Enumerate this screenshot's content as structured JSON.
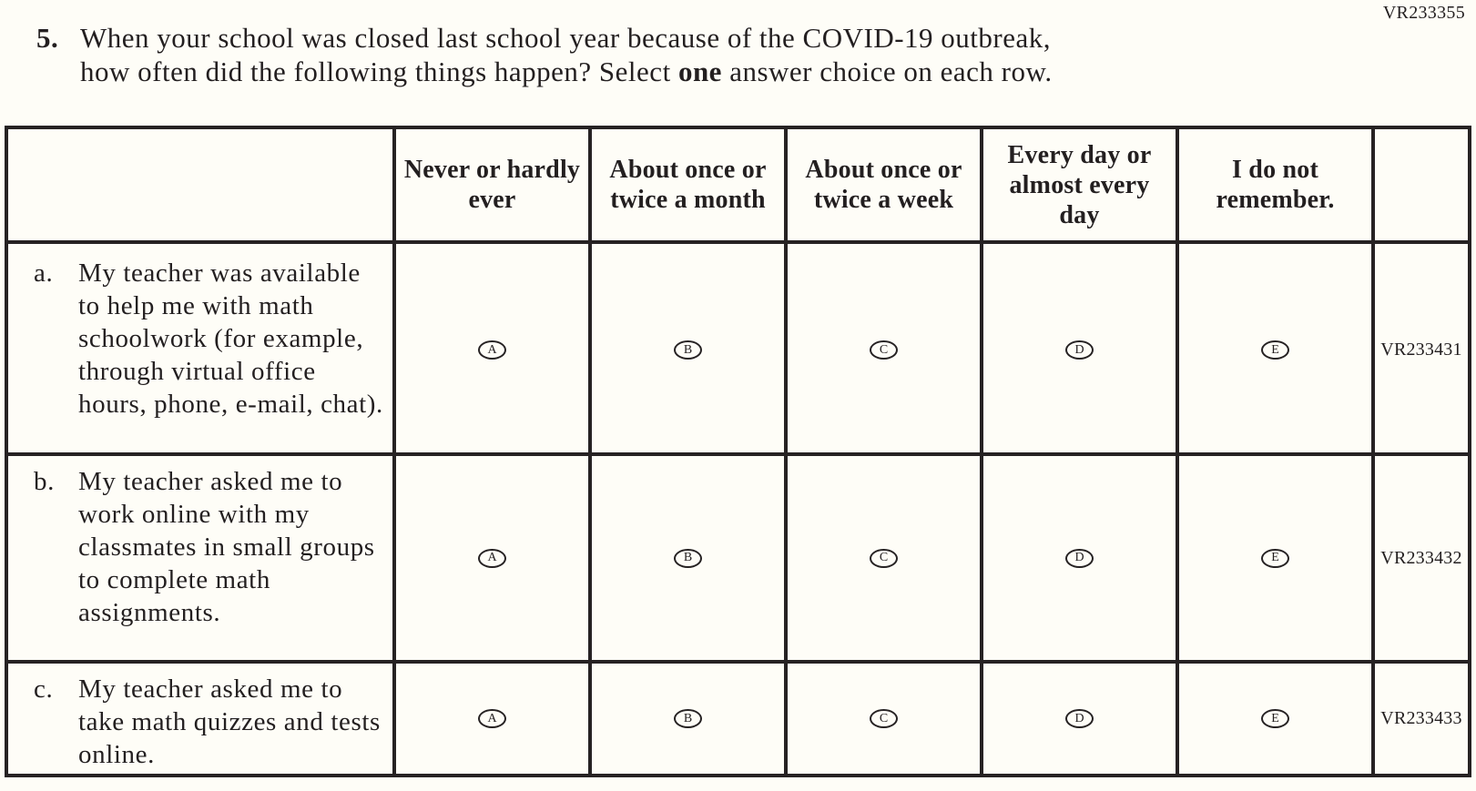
{
  "page": {
    "form_code": "VR233355"
  },
  "question": {
    "number": "5.",
    "line1": "When your school was closed last school year because of the COVID-19 outbreak,",
    "line2_pre": "how often did the following things happen? Select ",
    "line2_bold": "one",
    "line2_post": " answer choice on each row."
  },
  "table": {
    "column_headers": [
      "Never or hardly ever",
      "About once or twice a month",
      "About once or twice a week",
      "Every day or almost every day",
      "I do not remember."
    ],
    "option_letters": [
      "A",
      "B",
      "C",
      "D",
      "E"
    ],
    "rows": [
      {
        "letter": "a.",
        "stem": "My teacher was available to help me with math schoolwork (for example, through virtual office hours, phone, e-mail, chat).",
        "vr_code": "VR233431"
      },
      {
        "letter": "b.",
        "stem": "My teacher asked me to work online with my classmates in small groups to complete math assignments.",
        "vr_code": "VR233432"
      },
      {
        "letter": "c.",
        "stem": "My teacher asked me to take math quizzes and tests online.",
        "vr_code": "VR233433"
      }
    ]
  }
}
